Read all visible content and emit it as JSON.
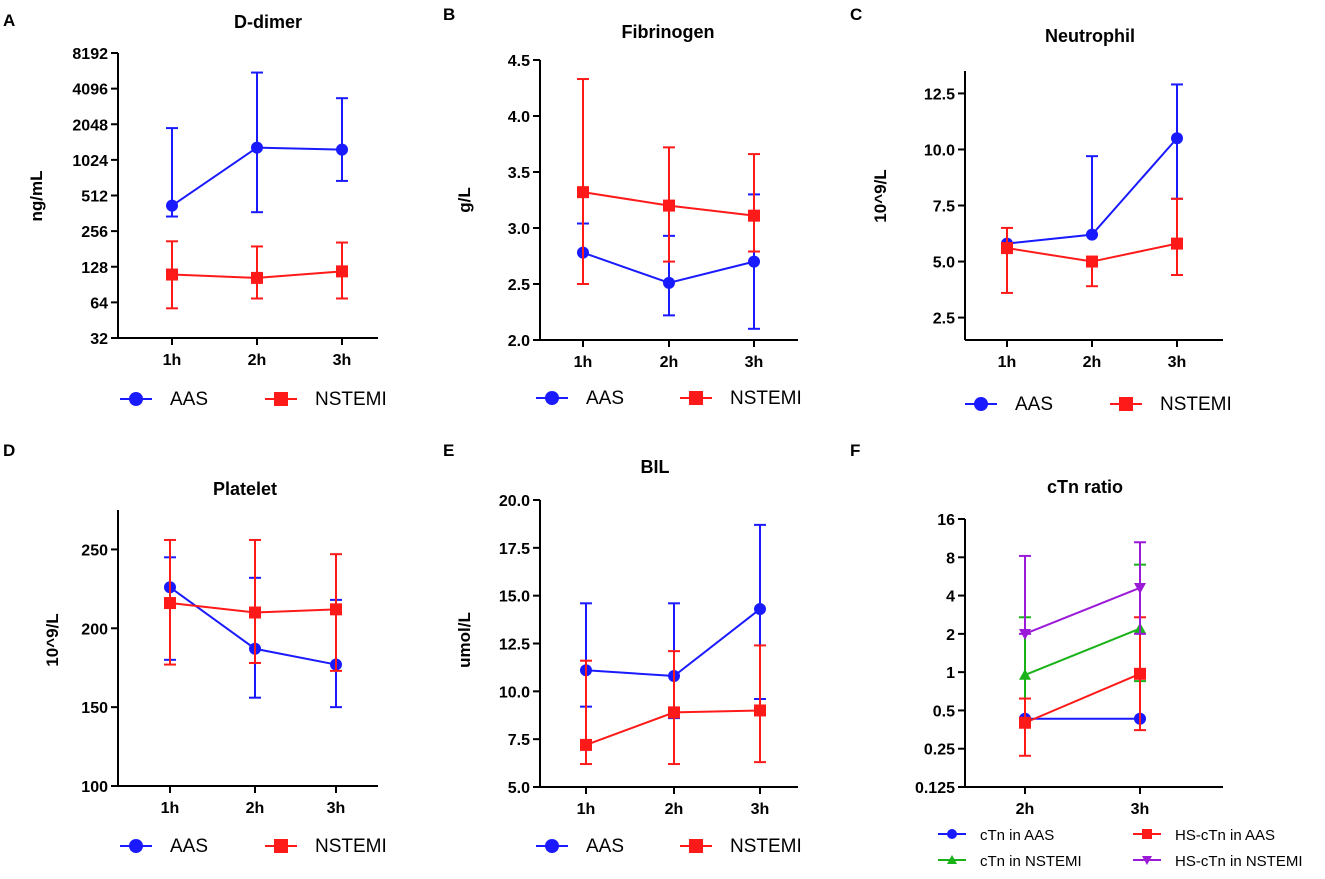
{
  "colors": {
    "AAS": "#1a1aff",
    "NSTEMI": "#ff1a1a",
    "cTn in AAS": "#1a1aff",
    "cTn in NSTEMI": "#19b219",
    "HS-cTn in AAS": "#ff1a1a",
    "HS-cTn in NSTEMI": "#9b1ad8"
  },
  "chart_data": [
    {
      "panel": "A",
      "type": "line",
      "title": "D-dimer",
      "ylabel": "ng/mL",
      "yscale": "log2",
      "ylim": [
        32,
        8192
      ],
      "yticks": [
        32,
        64,
        128,
        256,
        512,
        1024,
        2048,
        4096,
        8192
      ],
      "ytick_labels": [
        "32",
        "64",
        "128",
        "256",
        "512",
        "1024",
        "2048",
        "4096",
        "8192"
      ],
      "categories": [
        "1h",
        "2h",
        "3h"
      ],
      "series": [
        {
          "name": "AAS",
          "marker": "circle",
          "values": [
            420,
            1300,
            1250
          ],
          "err_low": [
            340,
            370,
            680
          ],
          "err_high": [
            1900,
            5600,
            3400
          ]
        },
        {
          "name": "NSTEMI",
          "marker": "square",
          "values": [
            110,
            103,
            117
          ],
          "err_low": [
            57,
            69,
            69
          ],
          "err_high": [
            210,
            190,
            205
          ]
        }
      ]
    },
    {
      "panel": "B",
      "type": "line",
      "title": "Fibrinogen",
      "ylabel": "g/L",
      "yscale": "linear",
      "ylim": [
        2.0,
        4.5
      ],
      "yticks": [
        2.0,
        2.5,
        3.0,
        3.5,
        4.0,
        4.5
      ],
      "ytick_labels": [
        "2.0",
        "2.5",
        "3.0",
        "3.5",
        "4.0",
        "4.5"
      ],
      "categories": [
        "1h",
        "2h",
        "3h"
      ],
      "series": [
        {
          "name": "AAS",
          "marker": "circle",
          "values": [
            2.78,
            2.51,
            2.7
          ],
          "err_low": [
            2.5,
            2.22,
            2.1
          ],
          "err_high": [
            3.04,
            2.93,
            3.3
          ]
        },
        {
          "name": "NSTEMI",
          "marker": "square",
          "values": [
            3.32,
            3.2,
            3.11
          ],
          "err_low": [
            2.5,
            2.7,
            2.79
          ],
          "err_high": [
            4.33,
            3.72,
            3.66
          ]
        }
      ]
    },
    {
      "panel": "C",
      "type": "line",
      "title": "Neutrophil",
      "ylabel": "10^9/L",
      "yscale": "linear",
      "ylim": [
        1.5,
        13.5
      ],
      "yticks": [
        2.5,
        5.0,
        7.5,
        10.0,
        12.5
      ],
      "ytick_labels": [
        "2.5",
        "5.0",
        "7.5",
        "10.0",
        "12.5"
      ],
      "categories": [
        "1h",
        "2h",
        "3h"
      ],
      "series": [
        {
          "name": "AAS",
          "marker": "circle",
          "values": [
            5.8,
            6.2,
            10.5
          ],
          "err_low": [
            5.8,
            6.2,
            7.8
          ],
          "err_high": [
            5.8,
            9.7,
            12.9
          ]
        },
        {
          "name": "NSTEMI",
          "marker": "square",
          "values": [
            5.6,
            5.0,
            5.8
          ],
          "err_low": [
            3.6,
            3.9,
            4.4
          ],
          "err_high": [
            6.5,
            5.0,
            7.8
          ]
        }
      ]
    },
    {
      "panel": "D",
      "type": "line",
      "title": "Platelet",
      "ylabel": "10^9/L",
      "yscale": "linear",
      "ylim": [
        100,
        275
      ],
      "yticks": [
        100,
        150,
        200,
        250
      ],
      "ytick_labels": [
        "100",
        "150",
        "200",
        "250"
      ],
      "categories": [
        "1h",
        "2h",
        "3h"
      ],
      "series": [
        {
          "name": "AAS",
          "marker": "circle",
          "values": [
            226,
            187,
            177
          ],
          "err_low": [
            180,
            156,
            150
          ],
          "err_high": [
            245,
            232,
            218
          ]
        },
        {
          "name": "NSTEMI",
          "marker": "square",
          "values": [
            216,
            210,
            212
          ],
          "err_low": [
            177,
            178,
            173
          ],
          "err_high": [
            256,
            256,
            247
          ]
        }
      ]
    },
    {
      "panel": "E",
      "type": "line",
      "title": "BIL",
      "ylabel": "umol/L",
      "yscale": "linear",
      "ylim": [
        5.0,
        20.0
      ],
      "yticks": [
        5.0,
        7.5,
        10.0,
        12.5,
        15.0,
        17.5,
        20.0
      ],
      "ytick_labels": [
        "5.0",
        "7.5",
        "10.0",
        "12.5",
        "15.0",
        "17.5",
        "20.0"
      ],
      "categories": [
        "1h",
        "2h",
        "3h"
      ],
      "series": [
        {
          "name": "AAS",
          "marker": "circle",
          "values": [
            11.1,
            10.8,
            14.3
          ],
          "err_low": [
            9.2,
            8.6,
            9.6
          ],
          "err_high": [
            14.6,
            14.6,
            18.7
          ]
        },
        {
          "name": "NSTEMI",
          "marker": "square",
          "values": [
            7.2,
            8.9,
            9.0
          ],
          "err_low": [
            6.2,
            6.2,
            6.3
          ],
          "err_high": [
            11.6,
            12.1,
            12.4
          ]
        }
      ]
    },
    {
      "panel": "F",
      "type": "line",
      "title": "cTn ratio",
      "ylabel": "",
      "yscale": "log2",
      "ylim": [
        0.125,
        16
      ],
      "yticks": [
        0.125,
        0.25,
        0.5,
        1,
        2,
        4,
        8,
        16
      ],
      "ytick_labels": [
        "0.125",
        "0.25",
        "0.5",
        "1",
        "2",
        "4",
        "8",
        "16"
      ],
      "categories": [
        "2h",
        "3h"
      ],
      "series": [
        {
          "name": "cTn in AAS",
          "marker": "circle",
          "values": [
            0.43,
            0.43
          ],
          "err_low": [
            0.43,
            0.43
          ],
          "err_high": [
            0.43,
            0.43
          ]
        },
        {
          "name": "cTn in NSTEMI",
          "marker": "triangle-up",
          "values": [
            0.95,
            2.2
          ],
          "err_low": [
            0.43,
            0.85
          ],
          "err_high": [
            2.7,
            7.0
          ]
        },
        {
          "name": "HS-cTn in AAS",
          "marker": "square",
          "values": [
            0.4,
            0.97
          ],
          "err_low": [
            0.22,
            0.35
          ],
          "err_high": [
            0.62,
            2.7
          ]
        },
        {
          "name": "HS-cTn in NSTEMI",
          "marker": "triangle-down",
          "values": [
            2.0,
            4.6
          ],
          "err_low": [
            2.0,
            2.0
          ],
          "err_high": [
            8.2,
            10.5
          ]
        }
      ]
    }
  ],
  "legends": {
    "A": [
      "AAS",
      "NSTEMI"
    ],
    "B": [
      "AAS",
      "NSTEMI"
    ],
    "C": [
      "AAS",
      "NSTEMI"
    ],
    "D": [
      "AAS",
      "NSTEMI"
    ],
    "E": [
      "AAS",
      "NSTEMI"
    ],
    "F": [
      "cTn in AAS",
      "HS-cTn in AAS",
      "cTn in NSTEMI",
      "HS-cTn in NSTEMI"
    ]
  }
}
